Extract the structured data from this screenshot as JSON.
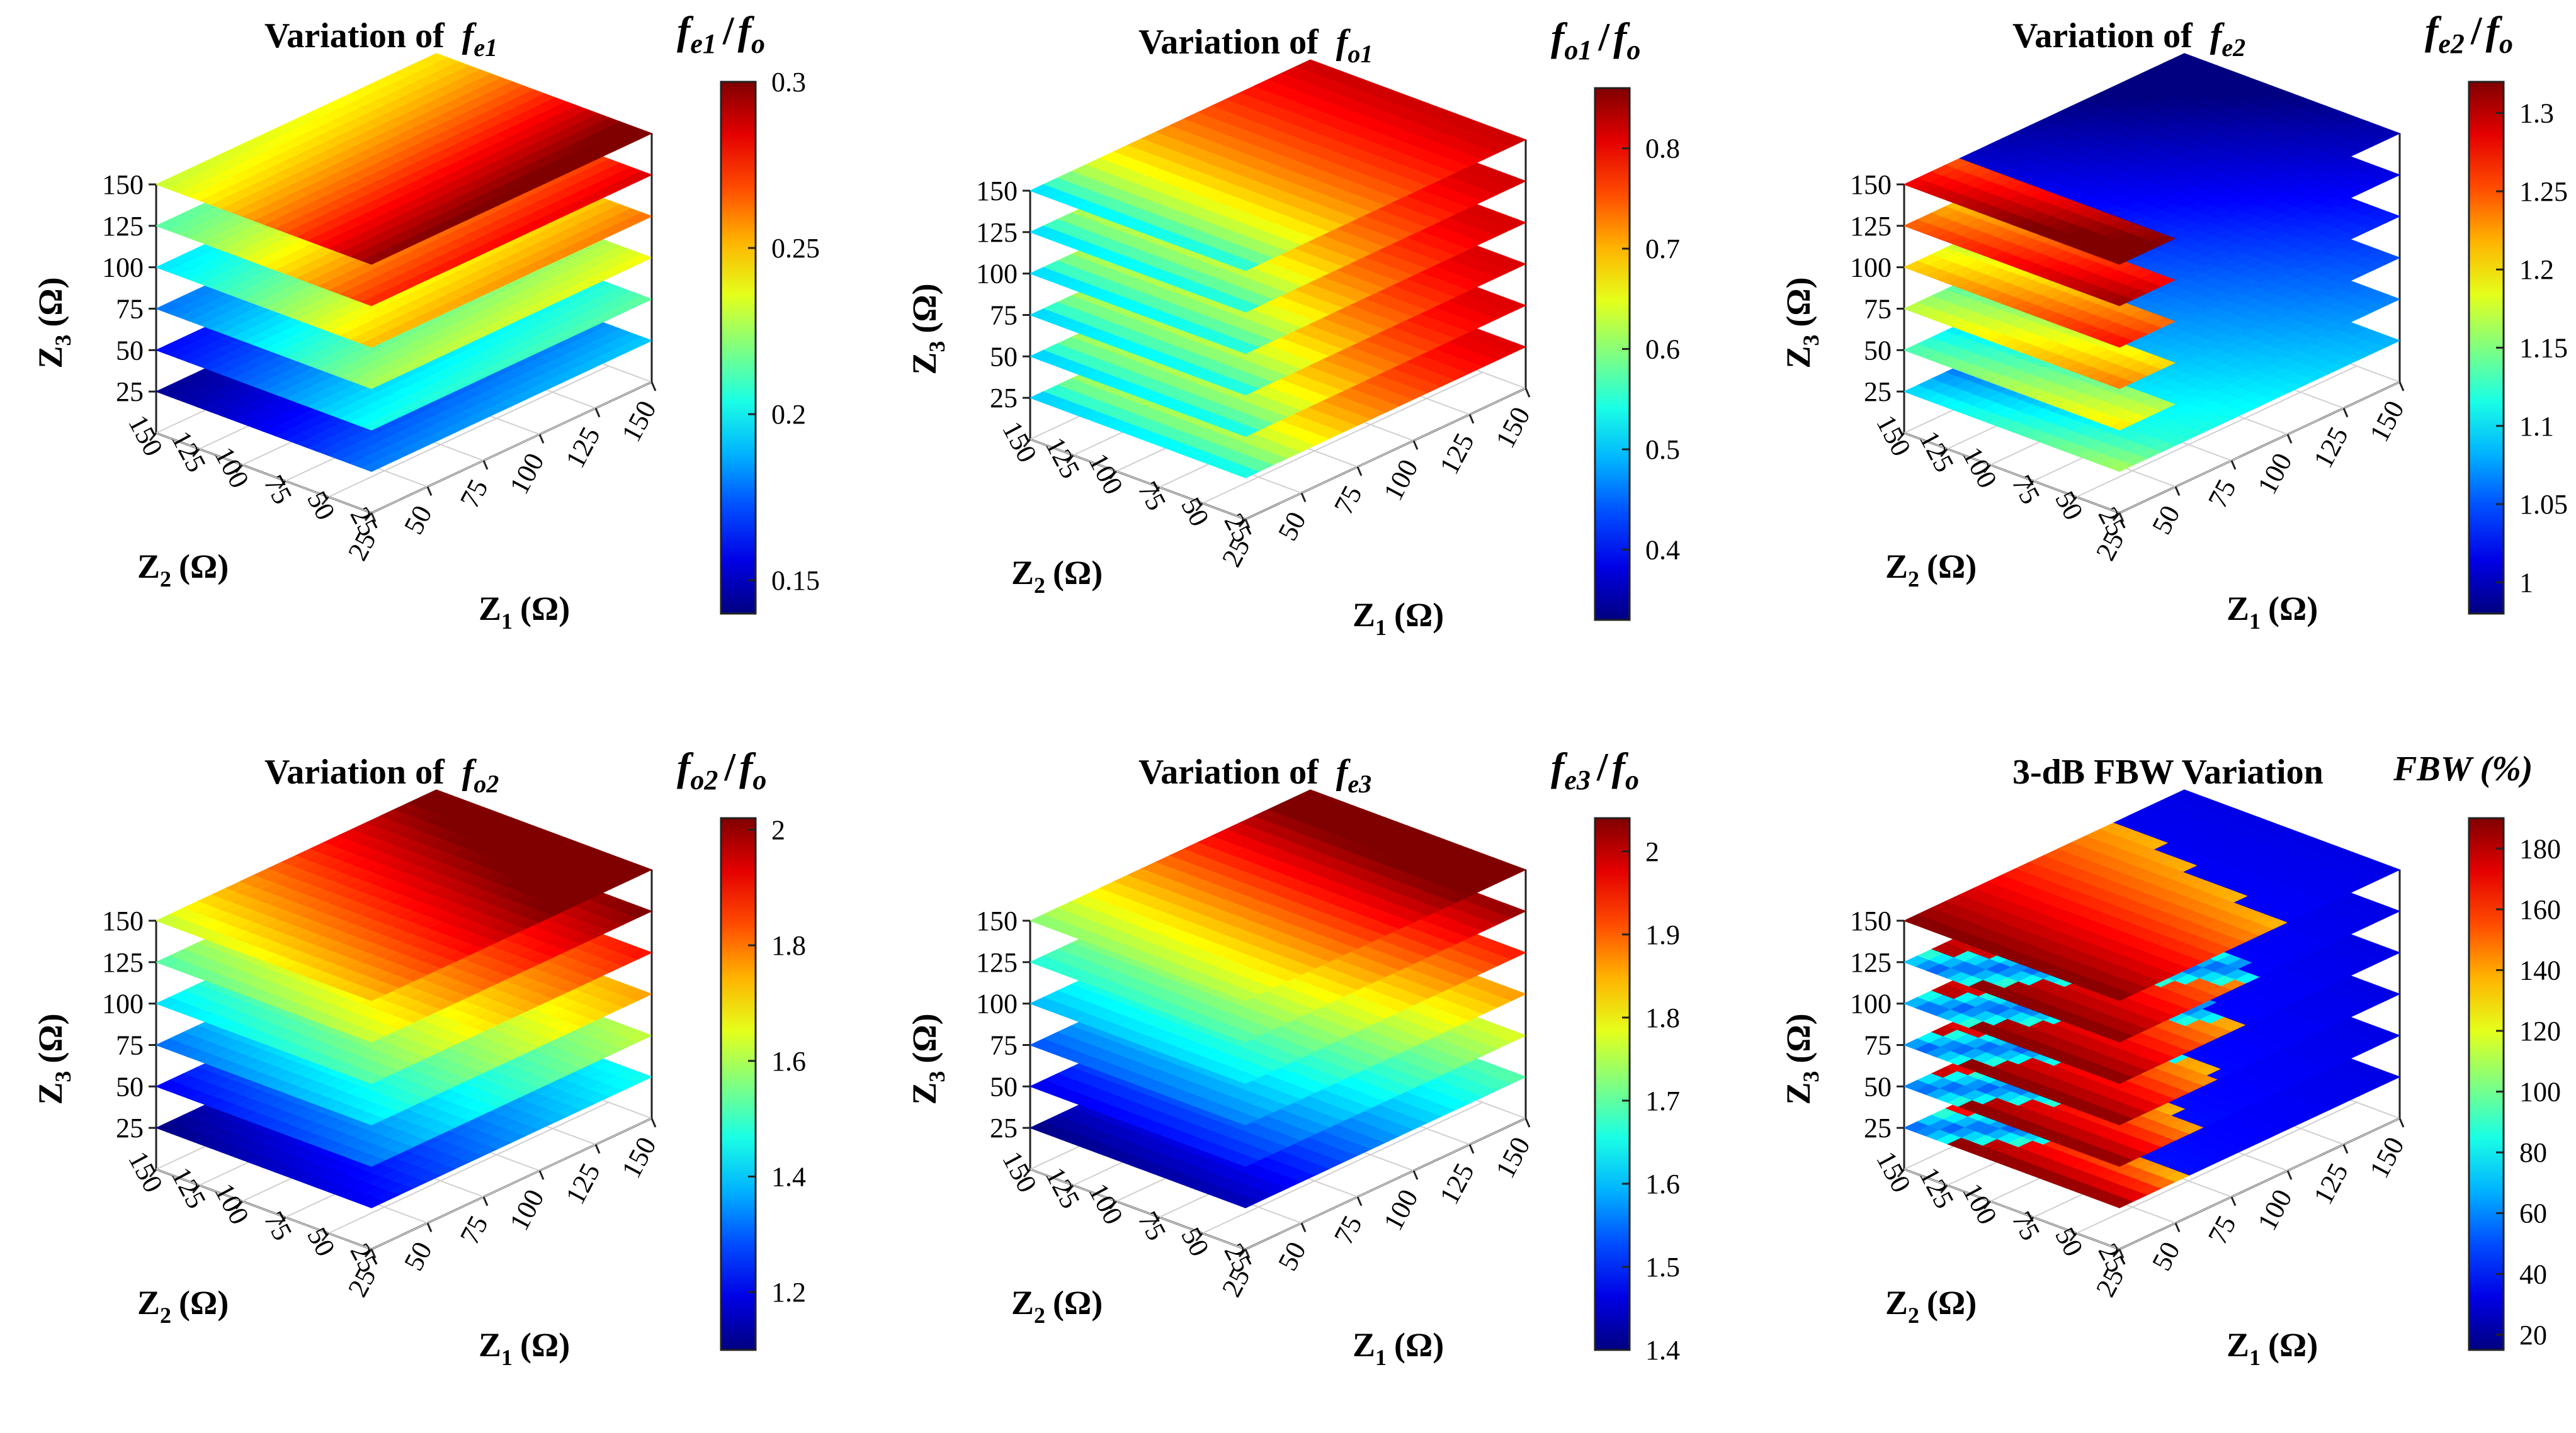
{
  "figure": {
    "axis_common": {
      "z3_label_main": "Z",
      "z3_label_sub": "3",
      "z3_label_unit": "(Ω)",
      "z2_label_main": "Z",
      "z2_label_sub": "2",
      "z2_label_unit": "(Ω)",
      "z1_label_main": "Z",
      "z1_label_sub": "1",
      "z1_label_unit": "(Ω)"
    }
  },
  "chart_data": [
    {
      "id": "fe1",
      "type": "heatmap",
      "title_prefix": "Variation of",
      "title_f": "f",
      "title_sub": "e1",
      "cb_num_f": "f",
      "cb_num_sub": "e1",
      "cb_slash": "/",
      "cb_den_f": "f",
      "cb_den_sub": "o",
      "cb_label_plain": "",
      "colorbar_range": [
        0.14,
        0.3
      ],
      "colorbar_ticks": [
        0.15,
        0.2,
        0.25,
        0.3
      ],
      "colorbar_tick_labels": [
        "0.15",
        "0.2",
        "0.25",
        "0.3"
      ],
      "z1_ticks": [
        "25",
        "50",
        "75",
        "100",
        "125",
        "150"
      ],
      "z2_ticks": [
        "25",
        "50",
        "75",
        "100",
        "125",
        "150"
      ],
      "z3_ticks": [
        "25",
        "50",
        "75",
        "100",
        "125",
        "150"
      ],
      "z3_slices": [
        25,
        50,
        75,
        100,
        125,
        150
      ],
      "z1_range": [
        25,
        150
      ],
      "z2_range": [
        25,
        150
      ],
      "pattern": "fe1"
    },
    {
      "id": "fo1",
      "type": "heatmap",
      "title_prefix": "Variation of",
      "title_f": "f",
      "title_sub": "o1",
      "cb_num_f": "f",
      "cb_num_sub": "o1",
      "cb_slash": "/",
      "cb_den_f": "f",
      "cb_den_sub": "o",
      "cb_label_plain": "",
      "colorbar_range": [
        0.33,
        0.86
      ],
      "colorbar_ticks": [
        0.4,
        0.5,
        0.6,
        0.7,
        0.8
      ],
      "colorbar_tick_labels": [
        "0.4",
        "0.5",
        "0.6",
        "0.7",
        "0.8"
      ],
      "z1_ticks": [
        "25",
        "50",
        "75",
        "100",
        "125",
        "150"
      ],
      "z2_ticks": [
        "25",
        "50",
        "75",
        "100",
        "125",
        "150"
      ],
      "z3_ticks": [
        "25",
        "50",
        "75",
        "100",
        "125",
        "150"
      ],
      "z3_slices": [
        25,
        50,
        75,
        100,
        125,
        150
      ],
      "z1_range": [
        25,
        150
      ],
      "z2_range": [
        25,
        150
      ],
      "pattern": "fo1"
    },
    {
      "id": "fe2",
      "type": "heatmap",
      "title_prefix": "Variation of",
      "title_f": "f",
      "title_sub": "e2",
      "cb_num_f": "f",
      "cb_num_sub": "e2",
      "cb_slash": "/",
      "cb_den_f": "f",
      "cb_den_sub": "o",
      "cb_label_plain": "",
      "colorbar_range": [
        0.98,
        1.32
      ],
      "colorbar_ticks": [
        1.0,
        1.05,
        1.1,
        1.15,
        1.2,
        1.25,
        1.3
      ],
      "colorbar_tick_labels": [
        "1",
        "1.05",
        "1.1",
        "1.15",
        "1.2",
        "1.25",
        "1.3"
      ],
      "z1_ticks": [
        "25",
        "50",
        "75",
        "100",
        "125",
        "150"
      ],
      "z2_ticks": [
        "25",
        "50",
        "75",
        "100",
        "125",
        "150"
      ],
      "z3_ticks": [
        "25",
        "50",
        "75",
        "100",
        "125",
        "150"
      ],
      "z3_slices": [
        25,
        50,
        75,
        100,
        125,
        150
      ],
      "z1_range": [
        25,
        150
      ],
      "z2_range": [
        25,
        150
      ],
      "pattern": "fe2"
    },
    {
      "id": "fo2",
      "type": "heatmap",
      "title_prefix": "Variation of",
      "title_f": "f",
      "title_sub": "o2",
      "cb_num_f": "f",
      "cb_num_sub": "o2",
      "cb_slash": "/",
      "cb_den_f": "f",
      "cb_den_sub": "o",
      "cb_label_plain": "",
      "colorbar_range": [
        1.1,
        2.02
      ],
      "colorbar_ticks": [
        1.2,
        1.4,
        1.6,
        1.8,
        2.0
      ],
      "colorbar_tick_labels": [
        "1.2",
        "1.4",
        "1.6",
        "1.8",
        "2"
      ],
      "z1_ticks": [
        "25",
        "50",
        "75",
        "100",
        "125",
        "150"
      ],
      "z2_ticks": [
        "25",
        "50",
        "75",
        "100",
        "125",
        "150"
      ],
      "z3_ticks": [
        "25",
        "50",
        "75",
        "100",
        "125",
        "150"
      ],
      "z3_slices": [
        25,
        50,
        75,
        100,
        125,
        150
      ],
      "z1_range": [
        25,
        150
      ],
      "z2_range": [
        25,
        150
      ],
      "pattern": "fo2"
    },
    {
      "id": "fe3",
      "type": "heatmap",
      "title_prefix": "Variation of",
      "title_f": "f",
      "title_sub": "e3",
      "cb_num_f": "f",
      "cb_num_sub": "e3",
      "cb_slash": "/",
      "cb_den_f": "f",
      "cb_den_sub": "o",
      "cb_label_plain": "",
      "colorbar_range": [
        1.4,
        2.04
      ],
      "colorbar_ticks": [
        1.4,
        1.5,
        1.6,
        1.7,
        1.8,
        1.9,
        2.0
      ],
      "colorbar_tick_labels": [
        "1.4",
        "1.5",
        "1.6",
        "1.7",
        "1.8",
        "1.9",
        "2"
      ],
      "z1_ticks": [
        "25",
        "50",
        "75",
        "100",
        "125",
        "150"
      ],
      "z2_ticks": [
        "25",
        "50",
        "75",
        "100",
        "125",
        "150"
      ],
      "z3_ticks": [
        "25",
        "50",
        "75",
        "100",
        "125",
        "150"
      ],
      "z3_slices": [
        25,
        50,
        75,
        100,
        125,
        150
      ],
      "z1_range": [
        25,
        150
      ],
      "z2_range": [
        25,
        150
      ],
      "pattern": "fe3"
    },
    {
      "id": "fbw",
      "type": "heatmap",
      "title_prefix": "3-dB FBW  Variation",
      "title_f": "",
      "title_sub": "",
      "cb_num_f": "",
      "cb_num_sub": "",
      "cb_slash": "",
      "cb_den_f": "",
      "cb_den_sub": "",
      "cb_label_plain": "FBW (%)",
      "colorbar_range": [
        15,
        190
      ],
      "colorbar_ticks": [
        20,
        40,
        60,
        80,
        100,
        120,
        140,
        160,
        180
      ],
      "colorbar_tick_labels": [
        "20",
        "40",
        "60",
        "80",
        "100",
        "120",
        "140",
        "160",
        "180"
      ],
      "z1_ticks": [
        "25",
        "50",
        "75",
        "100",
        "125",
        "150"
      ],
      "z2_ticks": [
        "25",
        "50",
        "75",
        "100",
        "125",
        "150"
      ],
      "z3_ticks": [
        "25",
        "50",
        "75",
        "100",
        "125",
        "150"
      ],
      "z3_slices": [
        25,
        50,
        75,
        100,
        125,
        150
      ],
      "z1_range": [
        25,
        150
      ],
      "z2_range": [
        25,
        150
      ],
      "pattern": "fbw"
    }
  ]
}
